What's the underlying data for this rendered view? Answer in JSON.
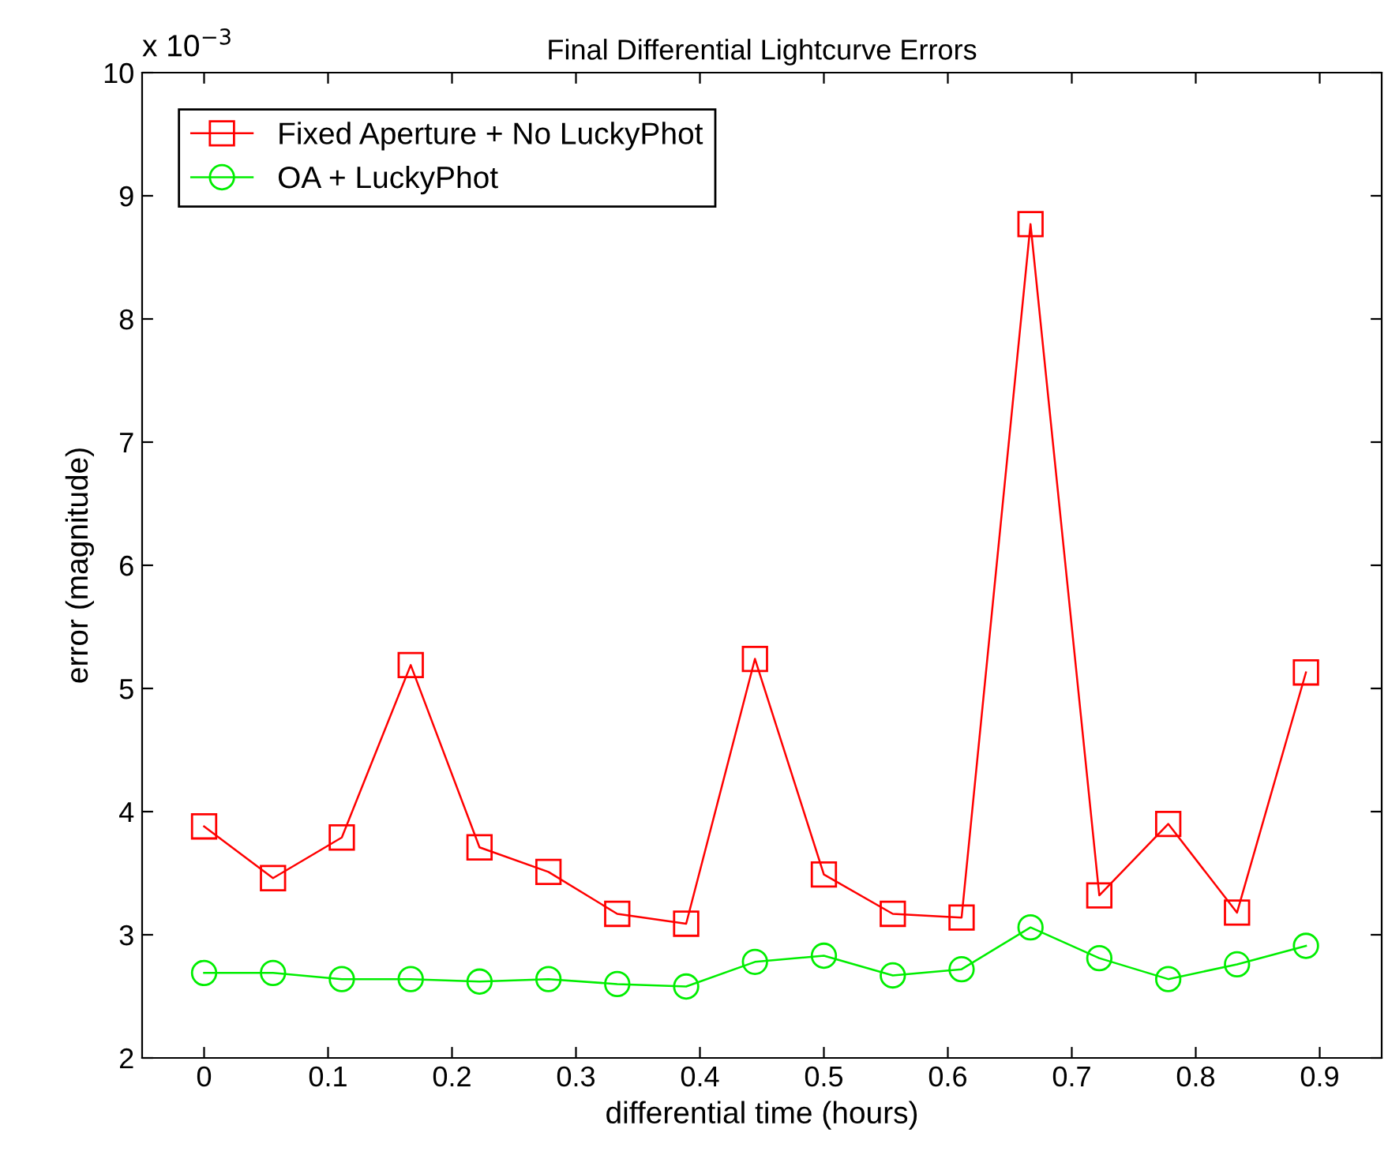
{
  "chart_data": {
    "type": "line",
    "title": "Final Differential Lightcurve Errors",
    "xlabel": "differential time (hours)",
    "ylabel": "error (magnitude)",
    "annotations": [
      "x 10$^{−3}$"
    ],
    "x": [
      0,
      0.0556,
      0.1111,
      0.1667,
      0.2222,
      0.2778,
      0.3333,
      0.3889,
      0.4444,
      0.5,
      0.5556,
      0.6111,
      0.6667,
      0.7222,
      0.7778,
      0.8333,
      0.8889
    ],
    "series": [
      {
        "name": "Fixed Aperture + No LuckyPhot",
        "color": "#ff0000",
        "marker": "square",
        "values": [
          3.88,
          3.46,
          3.79,
          5.19,
          3.71,
          3.51,
          3.17,
          3.09,
          5.24,
          3.49,
          3.17,
          3.14,
          8.77,
          3.32,
          3.9,
          3.18,
          5.13
        ]
      },
      {
        "name": "OA + LuckyPhot",
        "color": "#00ee00",
        "marker": "circle",
        "values": [
          2.69,
          2.69,
          2.64,
          2.64,
          2.62,
          2.64,
          2.6,
          2.58,
          2.78,
          2.83,
          2.67,
          2.72,
          3.06,
          2.81,
          2.64,
          2.76,
          2.91
        ]
      }
    ],
    "xlim": [
      -0.05,
      0.95
    ],
    "xticks": [
      0,
      0.1,
      0.2,
      0.3,
      0.4,
      0.5,
      0.6,
      0.7,
      0.8,
      0.9
    ],
    "ylim": [
      2,
      10
    ],
    "yticks": [
      2,
      3,
      4,
      5,
      6,
      7,
      8,
      9,
      10
    ],
    "grid": false,
    "legend": "top left",
    "line_style": "solid"
  }
}
